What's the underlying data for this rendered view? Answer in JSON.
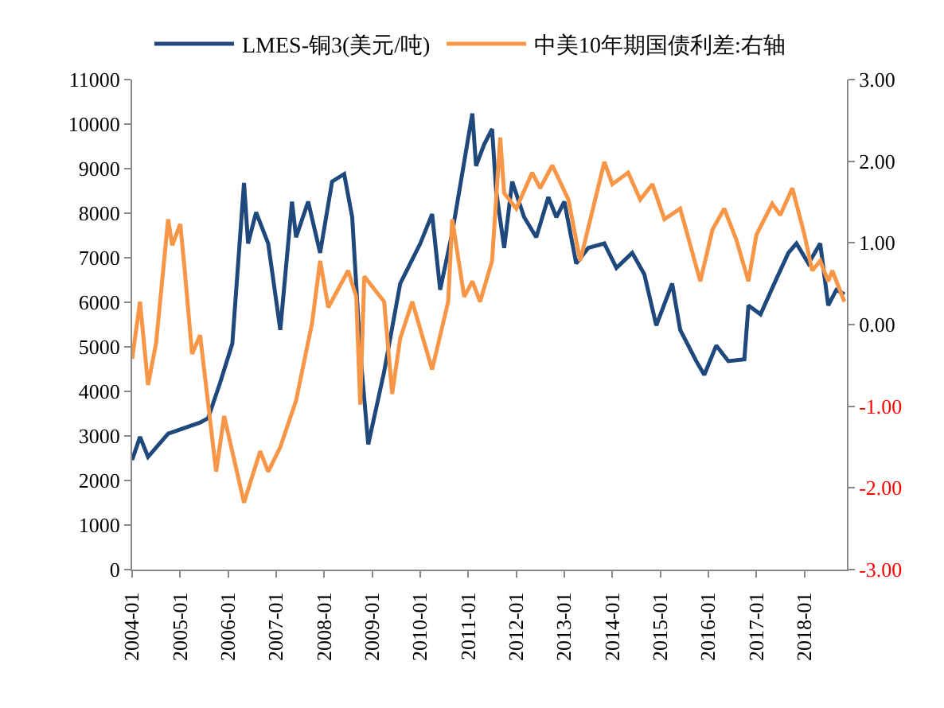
{
  "chart_data": {
    "type": "line",
    "legend": "top",
    "grid": false,
    "xlim": [
      "2004-01",
      "2018-11-20"
    ],
    "xticks": [
      {
        "value": "2004-01",
        "label": "2004-01"
      },
      {
        "value": "2005-01",
        "label": "2005-01"
      },
      {
        "value": "2006-01",
        "label": "2006-01"
      },
      {
        "value": "2007-01",
        "label": "2007-01"
      },
      {
        "value": "2008-01",
        "label": "2008-01"
      },
      {
        "value": "2009-01",
        "label": "2009-01"
      },
      {
        "value": "2010-01",
        "label": "2010-01"
      },
      {
        "value": "2011-01",
        "label": "2011-01"
      },
      {
        "value": "2012-01",
        "label": "2012-01"
      },
      {
        "value": "2013-01",
        "label": "2013-01"
      },
      {
        "value": "2014-01",
        "label": "2014-01"
      },
      {
        "value": "2015-01",
        "label": "2015-01"
      },
      {
        "value": "2016-01",
        "label": "2016-01"
      },
      {
        "value": "2017-01",
        "label": "2017-01"
      },
      {
        "value": "2018-01",
        "label": "2018-01"
      }
    ],
    "ylim": [
      0,
      11000
    ],
    "yticks": [
      0,
      1000,
      2000,
      3000,
      4000,
      5000,
      6000,
      7000,
      8000,
      9000,
      10000,
      11000
    ],
    "y2lim": [
      -3,
      3
    ],
    "y2ticks": [
      {
        "value": -3,
        "label": "-3.00"
      },
      {
        "value": -2,
        "label": "-2.00"
      },
      {
        "value": -1,
        "label": "-1.00"
      },
      {
        "value": 0,
        "label": "0.00"
      },
      {
        "value": 1,
        "label": "1.00"
      },
      {
        "value": 2,
        "label": "2.00"
      },
      {
        "value": 3,
        "label": "3.00"
      }
    ],
    "series": [
      {
        "name": "LMES-铜3(美元/吨)",
        "color": "#1f497d",
        "x": [
          "2004-01",
          "2004-03",
          "2004-05",
          "2004-10",
          "2005-06",
          "2005-08",
          "2005-11",
          "2006-02",
          "2006-05",
          "2006-06",
          "2006-08",
          "2006-11",
          "2007-02",
          "2007-05",
          "2007-06",
          "2007-09",
          "2007-12",
          "2008-03",
          "2008-06",
          "2008-08",
          "2008-10",
          "2008-12",
          "2009-04",
          "2009-08",
          "2010-01",
          "2010-04",
          "2010-06",
          "2010-09",
          "2011-02",
          "2011-03",
          "2011-05",
          "2011-07",
          "2011-08",
          "2011-10",
          "2011-12",
          "2012-03",
          "2012-06",
          "2012-09",
          "2012-11",
          "2013-01",
          "2013-04",
          "2013-07",
          "2013-11",
          "2014-02",
          "2014-06",
          "2014-09",
          "2014-12",
          "2015-04",
          "2015-06",
          "2015-10",
          "2015-12",
          "2016-03",
          "2016-06",
          "2016-10",
          "2016-11",
          "2017-02",
          "2017-06",
          "2017-09",
          "2017-11",
          "2018-02",
          "2018-05",
          "2018-07",
          "2018-09",
          "2018-11"
        ],
        "values": [
          2460,
          2980,
          2530,
          3050,
          3300,
          3400,
          4200,
          5070,
          8680,
          7320,
          8020,
          7320,
          5380,
          8260,
          7460,
          8260,
          7110,
          8710,
          8880,
          7910,
          4890,
          2810,
          4440,
          6420,
          7320,
          7980,
          6280,
          7560,
          10240,
          9060,
          9540,
          9890,
          8500,
          7220,
          8710,
          7910,
          7460,
          8360,
          7910,
          8260,
          6870,
          7220,
          7320,
          6770,
          7110,
          6630,
          5480,
          6420,
          5380,
          4680,
          4370,
          5030,
          4680,
          4720,
          5930,
          5730,
          6520,
          7110,
          7320,
          6870,
          7320,
          5930,
          6280,
          6180
        ]
      },
      {
        "name": "中美10年期国债利差:右轴",
        "color": "#f79646",
        "axis": "y2",
        "x": [
          "2004-01",
          "2004-03",
          "2004-05",
          "2004-07",
          "2004-10",
          "2004-11",
          "2005-01",
          "2005-02",
          "2005-04",
          "2005-06",
          "2005-10",
          "2005-12",
          "2006-05",
          "2006-09",
          "2006-11",
          "2007-02",
          "2007-06",
          "2007-10",
          "2007-12",
          "2008-02",
          "2008-07",
          "2008-09",
          "2008-10",
          "2008-11",
          "2009-04",
          "2009-06",
          "2009-08",
          "2009-11",
          "2010-04",
          "2010-08",
          "2010-09",
          "2010-12",
          "2011-02",
          "2011-04",
          "2011-07",
          "2011-09",
          "2011-10",
          "2012-01",
          "2012-05",
          "2012-07",
          "2012-10",
          "2013-02",
          "2013-05",
          "2013-11",
          "2014-01",
          "2014-05",
          "2014-08",
          "2014-11",
          "2015-02",
          "2015-06",
          "2015-11",
          "2016-02",
          "2016-05",
          "2016-08",
          "2016-11",
          "2017-01",
          "2017-05",
          "2017-07",
          "2017-10",
          "2018-01",
          "2018-03",
          "2018-05",
          "2018-07",
          "2018-08",
          "2018-11"
        ],
        "values": [
          -0.42,
          0.28,
          -0.74,
          -0.23,
          1.29,
          0.97,
          1.23,
          0.72,
          -0.36,
          -0.13,
          -1.8,
          -1.12,
          -2.18,
          -1.55,
          -1.8,
          -1.5,
          -0.93,
          0.02,
          0.78,
          0.21,
          0.66,
          0.34,
          -0.98,
          0.59,
          0.28,
          -0.85,
          -0.17,
          0.28,
          -0.55,
          0.28,
          1.29,
          0.34,
          0.53,
          0.28,
          0.78,
          2.29,
          1.61,
          1.42,
          1.86,
          1.67,
          1.95,
          1.53,
          0.78,
          1.99,
          1.72,
          1.86,
          1.53,
          1.72,
          1.29,
          1.42,
          0.53,
          1.16,
          1.42,
          1.04,
          0.53,
          1.1,
          1.48,
          1.34,
          1.67,
          1.1,
          0.66,
          0.78,
          0.53,
          0.66,
          0.28
        ]
      }
    ]
  }
}
